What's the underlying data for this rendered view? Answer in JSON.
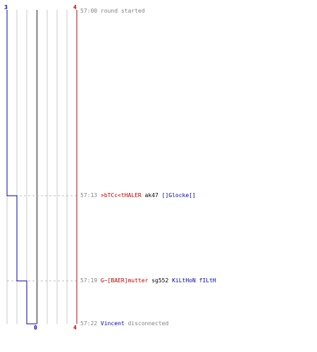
{
  "scores": {
    "team2_start": "3",
    "team1_start": "4",
    "team2_end": "0",
    "team1_end": "4"
  },
  "colors": {
    "team1": "#c00000",
    "team2": "#0000b0",
    "grid": "#c8c8c8",
    "center": "#808080"
  },
  "events": [
    {
      "time": "57:00",
      "type": "message",
      "message": "round started"
    },
    {
      "time": "57:13",
      "type": "kill",
      "killer": ">bTCc<tHALER",
      "weapon": "ak47",
      "victim": "[]Glocke[]"
    },
    {
      "time": "57:19",
      "type": "kill",
      "killer": "G~[BAER]mutter",
      "weapon": "sg552",
      "victim": "KiLtHoN fILtH"
    },
    {
      "time": "57:22",
      "type": "player",
      "player": "Vincent",
      "message": "disconnected"
    }
  ]
}
